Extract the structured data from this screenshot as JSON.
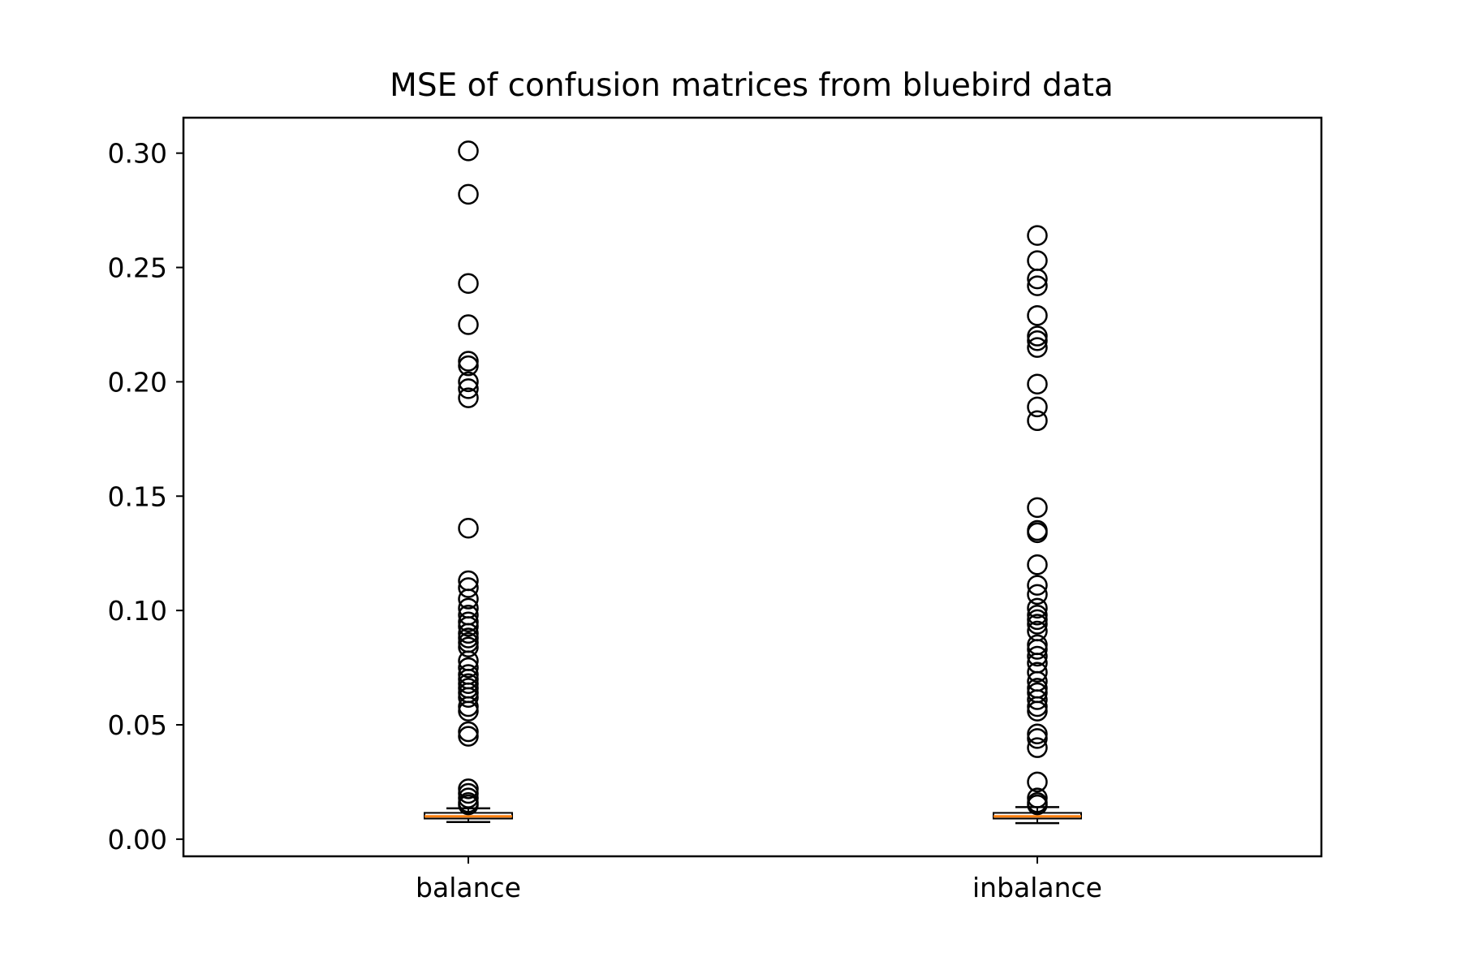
{
  "chart_data": {
    "type": "boxplot",
    "title": "MSE of confusion matrices from bluebird data",
    "xlabel": "",
    "ylabel": "",
    "categories": [
      "balance",
      "inbalance"
    ],
    "ylim": [
      -0.0075,
      0.3155
    ],
    "yticks": [
      0.0,
      0.05,
      0.1,
      0.15,
      0.2,
      0.25,
      0.3
    ],
    "ytick_labels": [
      "0.00",
      "0.05",
      "0.10",
      "0.15",
      "0.20",
      "0.25",
      "0.30"
    ],
    "grid": false,
    "legend": "none",
    "boxes": [
      {
        "name": "balance",
        "whisker_low": 0.0075,
        "q1": 0.009,
        "median": 0.01,
        "q3": 0.0115,
        "whisker_high": 0.0135,
        "outliers": [
          0.301,
          0.282,
          0.243,
          0.225,
          0.209,
          0.207,
          0.2,
          0.197,
          0.193,
          0.136,
          0.113,
          0.11,
          0.105,
          0.101,
          0.098,
          0.095,
          0.093,
          0.09,
          0.088,
          0.086,
          0.084,
          0.078,
          0.075,
          0.072,
          0.07,
          0.068,
          0.066,
          0.064,
          0.062,
          0.058,
          0.056,
          0.047,
          0.045,
          0.022,
          0.02,
          0.018,
          0.016,
          0.015
        ]
      },
      {
        "name": "inbalance",
        "whisker_low": 0.007,
        "q1": 0.009,
        "median": 0.01,
        "q3": 0.0115,
        "whisker_high": 0.014,
        "outliers": [
          0.264,
          0.253,
          0.245,
          0.242,
          0.229,
          0.22,
          0.218,
          0.215,
          0.199,
          0.189,
          0.183,
          0.145,
          0.135,
          0.134,
          0.12,
          0.111,
          0.107,
          0.101,
          0.098,
          0.096,
          0.094,
          0.091,
          0.085,
          0.083,
          0.08,
          0.077,
          0.073,
          0.069,
          0.066,
          0.064,
          0.061,
          0.058,
          0.056,
          0.046,
          0.044,
          0.04,
          0.025,
          0.018,
          0.016,
          0.015
        ]
      }
    ],
    "colors": {
      "median": "#ff7f0e",
      "box": "#000000",
      "outlier_edge": "#000000"
    }
  }
}
